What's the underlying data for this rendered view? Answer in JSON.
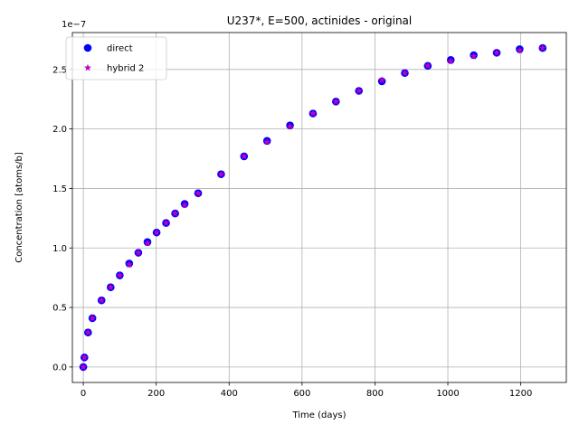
{
  "chart_data": {
    "type": "scatter",
    "title": "U237*, E=500, actinides - original",
    "xlabel": "Time (days)",
    "ylabel": "Concentration [atoms/b]",
    "y_offset_label": "1e−7",
    "xlim": [
      -30,
      1325
    ],
    "ylim": [
      -0.13,
      2.81
    ],
    "x_ticks": [
      0,
      200,
      400,
      600,
      800,
      1000,
      1200
    ],
    "y_ticks": [
      0.0,
      0.5,
      1.0,
      1.5,
      2.0,
      2.5
    ],
    "x_tick_labels": [
      "0",
      "200",
      "400",
      "600",
      "800",
      "1000",
      "1200"
    ],
    "y_tick_labels": [
      "0.0",
      "0.5",
      "1.0",
      "1.5",
      "2.0",
      "2.5"
    ],
    "grid": true,
    "legend_position": "top-left",
    "series": [
      {
        "name": "direct",
        "marker": "circle",
        "color": "#0000ff",
        "x": [
          0,
          3,
          13,
          25,
          50,
          75,
          100,
          126,
          151,
          176,
          201,
          227,
          252,
          278,
          315,
          378,
          441,
          504,
          567,
          630,
          693,
          756,
          819,
          882,
          945,
          1008,
          1071,
          1134,
          1197,
          1260
        ],
        "y": [
          0.0,
          0.08,
          0.29,
          0.41,
          0.56,
          0.67,
          0.77,
          0.87,
          0.96,
          1.05,
          1.13,
          1.21,
          1.29,
          1.37,
          1.46,
          1.62,
          1.77,
          1.9,
          2.03,
          2.13,
          2.23,
          2.32,
          2.4,
          2.47,
          2.53,
          2.58,
          2.62,
          2.64,
          2.67,
          2.68
        ]
      },
      {
        "name": "hybrid 2",
        "marker": "star",
        "color": "#bf00bf",
        "x": [
          0,
          3,
          13,
          25,
          50,
          75,
          100,
          126,
          151,
          176,
          201,
          227,
          252,
          278,
          315,
          378,
          441,
          504,
          567,
          630,
          693,
          756,
          819,
          882,
          945,
          1008,
          1071,
          1134,
          1197,
          1260
        ],
        "y": [
          0.0,
          0.08,
          0.29,
          0.41,
          0.56,
          0.67,
          0.77,
          0.86,
          0.96,
          1.04,
          1.13,
          1.21,
          1.29,
          1.36,
          1.46,
          1.62,
          1.77,
          1.89,
          2.02,
          2.13,
          2.23,
          2.32,
          2.41,
          2.47,
          2.53,
          2.57,
          2.61,
          2.64,
          2.66,
          2.68
        ]
      }
    ]
  }
}
